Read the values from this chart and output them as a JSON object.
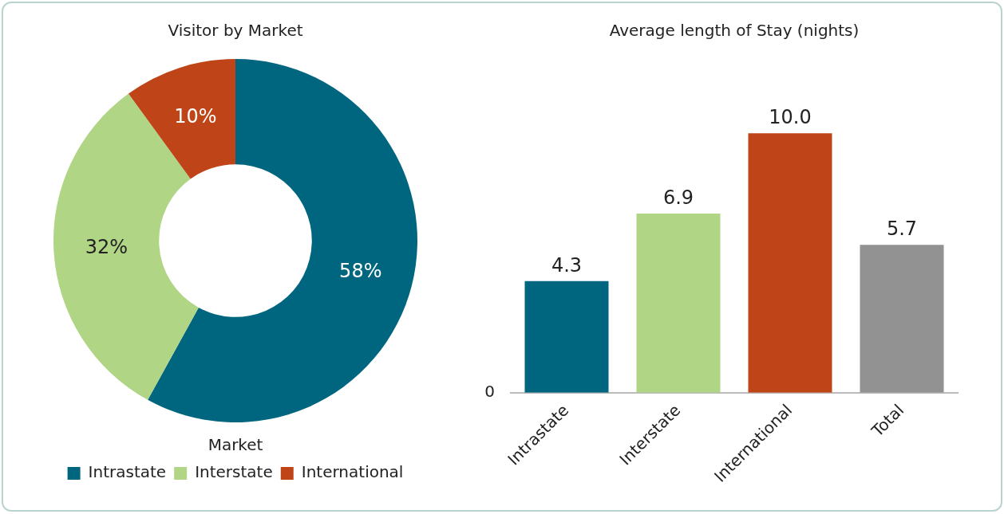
{
  "chart_data": [
    {
      "type": "donut",
      "title": "Visitor by Market",
      "legend_title": "Market",
      "legend": "bottom",
      "categories": [
        "Intrastate",
        "Interstate",
        "International"
      ],
      "values": [
        58,
        32,
        10
      ],
      "colors": [
        "#006680",
        "#b0d585",
        "#bf4518"
      ],
      "value_labels": [
        "58%",
        "32%",
        "10%"
      ]
    },
    {
      "type": "bar",
      "title": "Average length of Stay (nights)",
      "categories": [
        "Intrastate",
        "Interstate",
        "International",
        "Total"
      ],
      "values": [
        4.3,
        6.9,
        10.0,
        5.7
      ],
      "colors": [
        "#006680",
        "#b0d585",
        "#bf4518",
        "#929292"
      ],
      "value_labels": [
        "4.3",
        "6.9",
        "10.0",
        "5.7"
      ],
      "annotations": [
        "0"
      ],
      "legend": false
    }
  ]
}
